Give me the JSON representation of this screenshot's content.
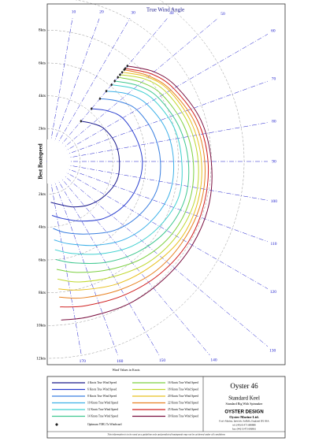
{
  "chart_data": {
    "type": "polar",
    "title": "True Wind Angle",
    "y_label": "Best Boatspeed",
    "x_note": "Wind Values in Knots",
    "angles": [
      40,
      50,
      60,
      75,
      90,
      105,
      120,
      135,
      150,
      165,
      175
    ],
    "angle_ticks": [
      10,
      20,
      30,
      40,
      50,
      60,
      70,
      80,
      90,
      100,
      110,
      120,
      130,
      140,
      150,
      160,
      170
    ],
    "rlim": [
      0,
      12
    ],
    "rticks": [
      {
        "value": 2,
        "label": "2kts"
      },
      {
        "value": 4,
        "label": "4kts"
      },
      {
        "value": 6,
        "label": "6kts"
      },
      {
        "value": 8,
        "label": "8kts"
      },
      {
        "value": 10,
        "label": "10kts"
      },
      {
        "value": 12,
        "label": "12kts"
      }
    ],
    "vmg_label": "Optimum VMG To Windward",
    "series": [
      {
        "name": "4 Knots True Wind Speed",
        "color": "#1a1a8c",
        "values": [
          3.2,
          3.6,
          4.0,
          4.3,
          4.4,
          4.4,
          4.1,
          3.7,
          3.2,
          2.7,
          2.5
        ]
      },
      {
        "name": "6 Knots True Wind Speed",
        "color": "#2a3fcf",
        "values": [
          4.2,
          4.8,
          5.3,
          5.6,
          5.8,
          5.7,
          5.4,
          4.9,
          4.2,
          3.6,
          3.3
        ]
      },
      {
        "name": "8 Knots True Wind Speed",
        "color": "#3a7fe0",
        "values": [
          5.0,
          5.7,
          6.3,
          6.7,
          6.9,
          6.9,
          6.5,
          5.9,
          5.1,
          4.5,
          4.1
        ]
      },
      {
        "name": "10 Knots True Wind Speed",
        "color": "#3cb0e8",
        "values": [
          5.6,
          6.4,
          7.0,
          7.5,
          7.7,
          7.7,
          7.3,
          6.7,
          5.9,
          5.2,
          4.8
        ]
      },
      {
        "name": "12 Knots True Wind Speed",
        "color": "#40d0d0",
        "values": [
          6.1,
          6.9,
          7.5,
          8.0,
          8.2,
          8.3,
          7.9,
          7.3,
          6.5,
          5.8,
          5.4
        ]
      },
      {
        "name": "14 Knots True Wind Speed",
        "color": "#40c890",
        "values": [
          6.4,
          7.2,
          7.8,
          8.3,
          8.6,
          8.7,
          8.4,
          7.8,
          7.1,
          6.4,
          6.0
        ]
      },
      {
        "name": "16 Knots True Wind Speed",
        "color": "#7cd040",
        "values": [
          6.7,
          7.5,
          8.1,
          8.6,
          8.9,
          9.0,
          8.8,
          8.3,
          7.6,
          7.0,
          6.6
        ]
      },
      {
        "name": "18 Knots True Wind Speed",
        "color": "#c0d830",
        "values": [
          6.9,
          7.8,
          8.4,
          8.9,
          9.2,
          9.3,
          9.1,
          8.7,
          8.1,
          7.6,
          7.2
        ]
      },
      {
        "name": "20 Knots True Wind Speed",
        "color": "#e8c020",
        "values": [
          7.1,
          8.0,
          8.6,
          9.1,
          9.4,
          9.5,
          9.4,
          9.0,
          8.6,
          8.1,
          7.8
        ]
      },
      {
        "name": "22 Knots True Wind Speed",
        "color": "#e88020",
        "values": [
          7.3,
          8.1,
          8.7,
          9.3,
          9.6,
          9.7,
          9.6,
          9.4,
          9.0,
          8.6,
          8.3
        ]
      },
      {
        "name": "25 Knots True Wind Speed",
        "color": "#d02020",
        "values": [
          7.4,
          8.3,
          8.9,
          9.5,
          9.8,
          9.9,
          9.9,
          9.7,
          9.4,
          9.1,
          8.9
        ]
      },
      {
        "name": "30 Knots True Wind Speed",
        "color": "#7a1040",
        "values": [
          7.6,
          8.5,
          9.1,
          9.7,
          10.0,
          10.2,
          10.2,
          10.1,
          10.0,
          9.8,
          9.7
        ]
      }
    ],
    "info": {
      "boat": "Oyster 46",
      "keel": "Standard Keel",
      "rig": "Standard Rig With Spinnaker",
      "company": "OYSTER DESIGN",
      "firm": "Oyster Marine Ltd.",
      "address": "Fox's Marina, Ipswich, Suffolk, England IP2 8SA",
      "tel": "tel: (44) 01473 688888",
      "fax": "fax: (44) 01473 686861"
    },
    "disclaimer": "This information is to be used as a guideline only and predicted boatspeeds may not be achieved under all conditions"
  }
}
